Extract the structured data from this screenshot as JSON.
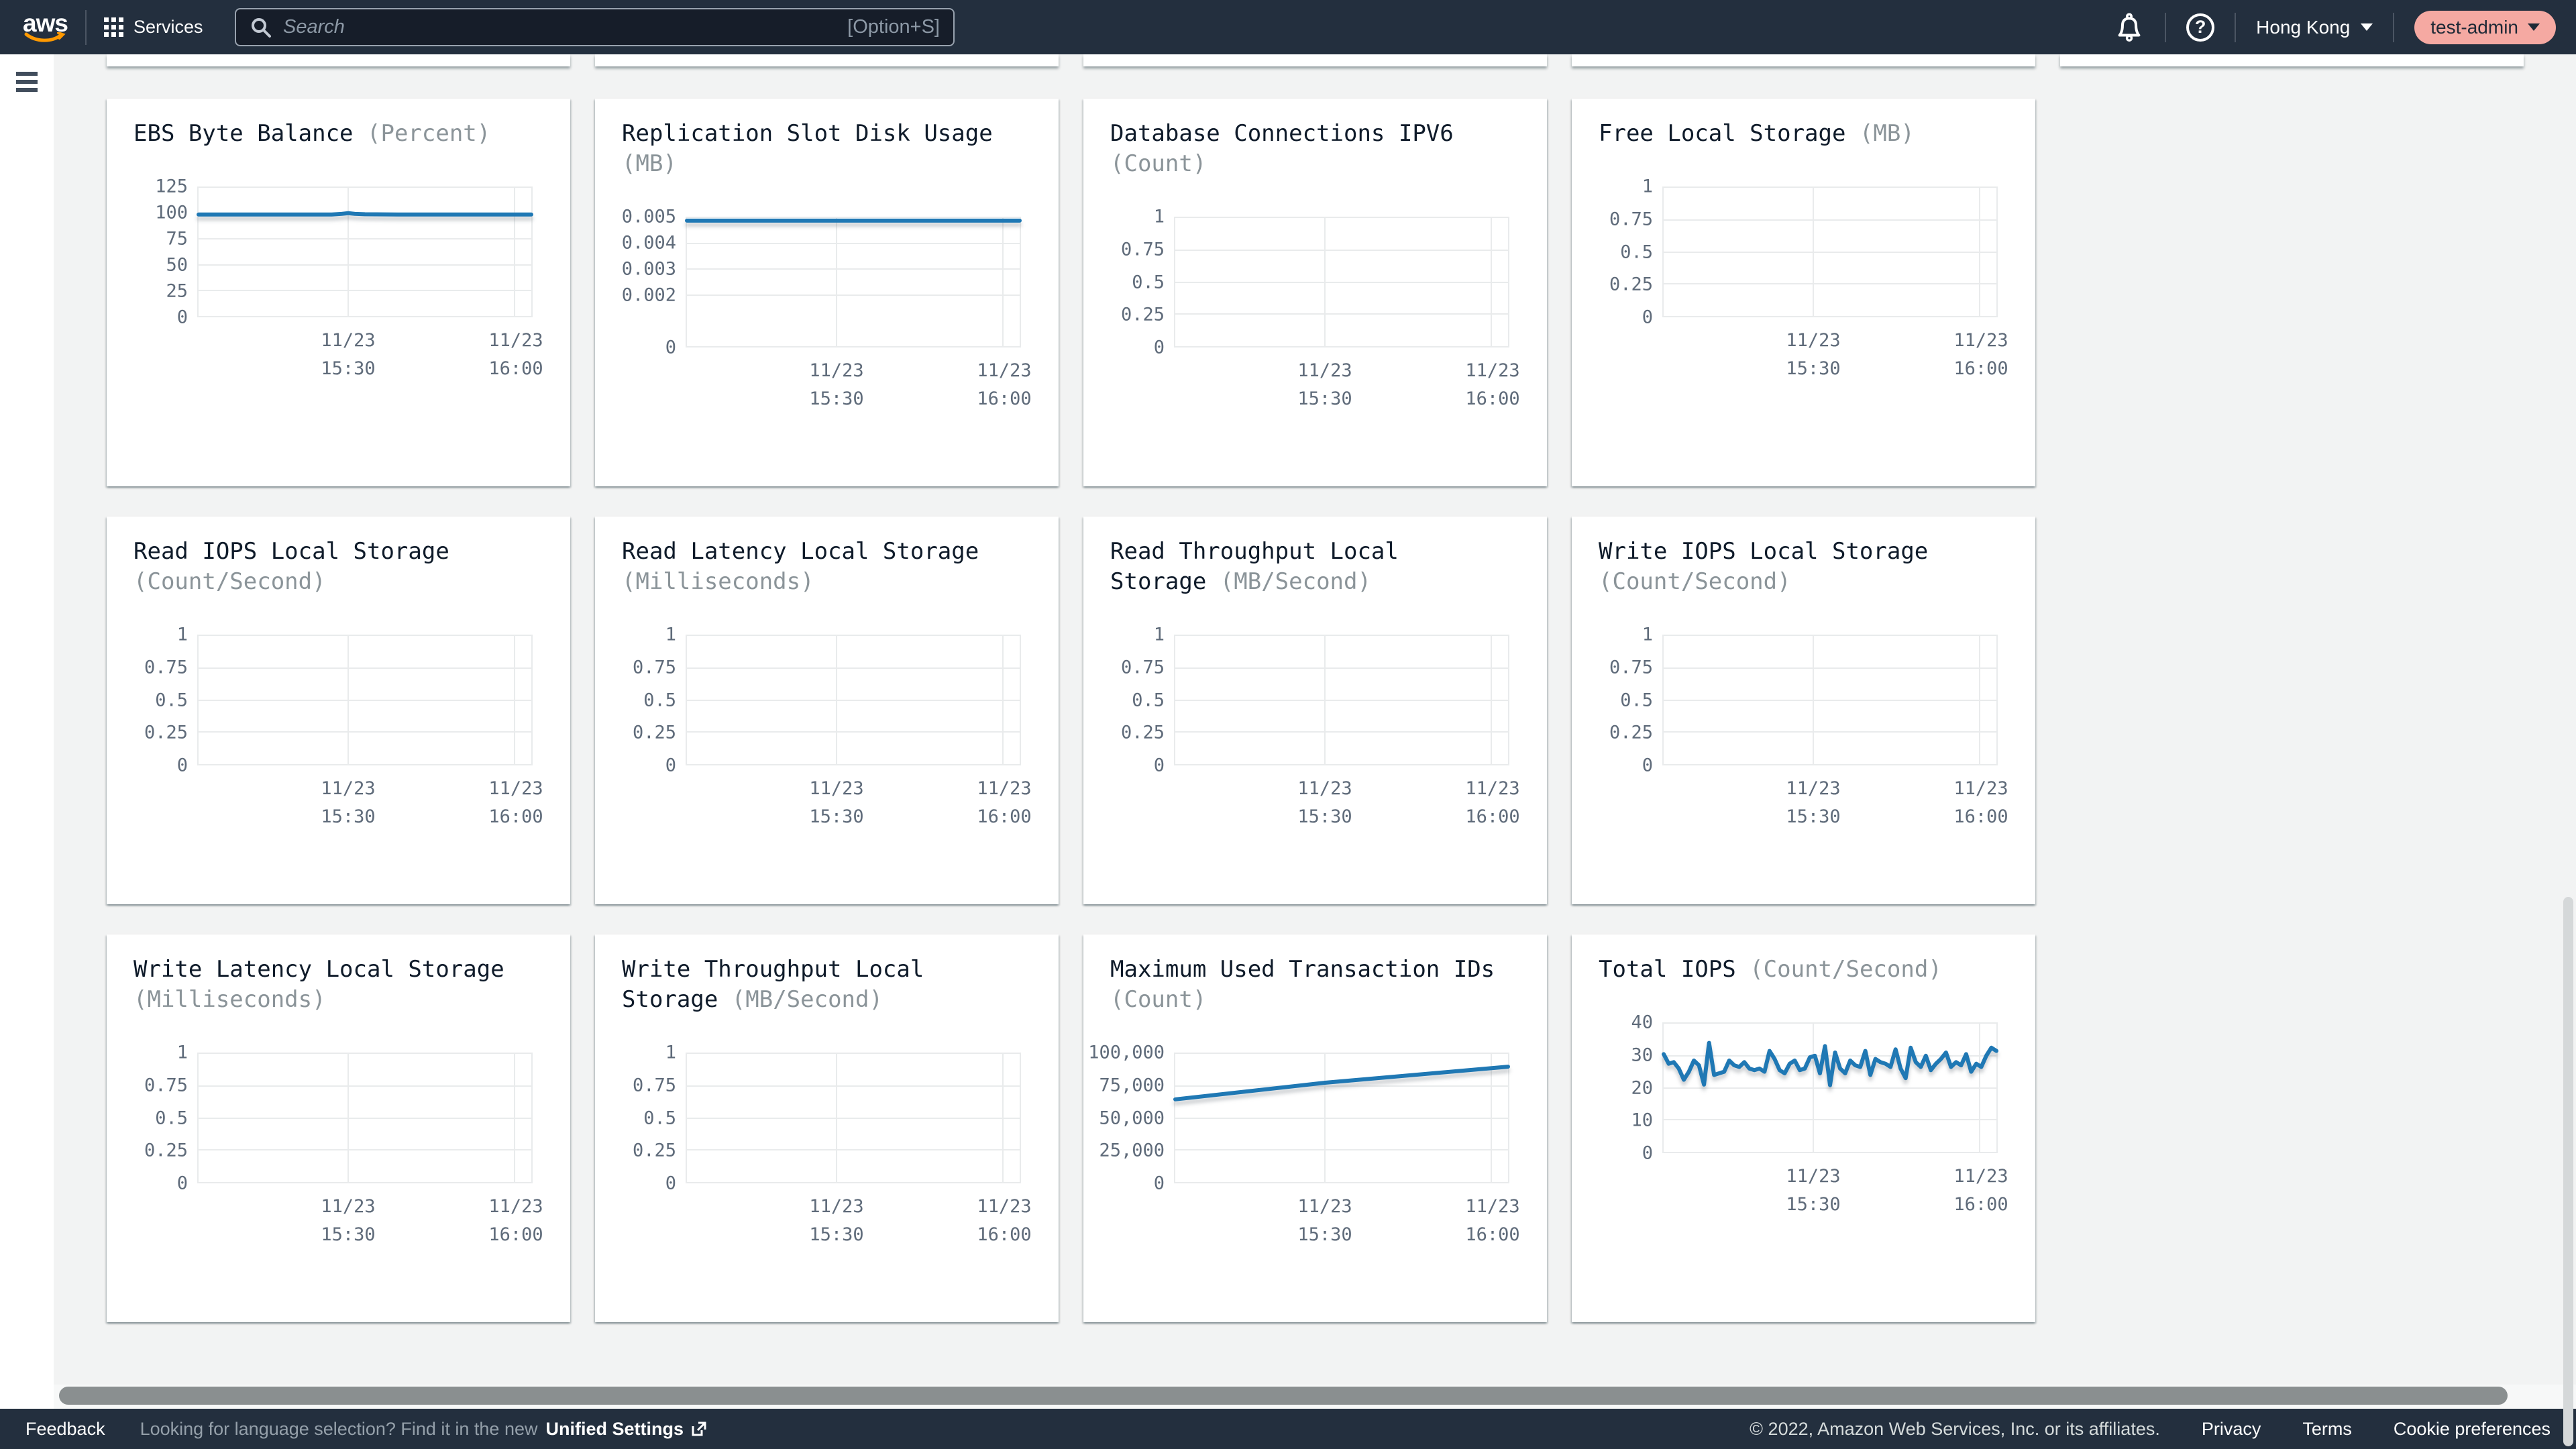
{
  "topbar": {
    "logo_text": "aws",
    "services": "Services",
    "search": {
      "placeholder": "Search",
      "shortcut": "[Option+S]"
    },
    "help_glyph": "?",
    "region": "Hong Kong",
    "account": "test-admin"
  },
  "footer": {
    "feedback": "Feedback",
    "language_hint": "Looking for language selection? Find it in the new",
    "unified_settings": "Unified Settings",
    "copyright": "© 2022, Amazon Web Services, Inc. or its affiliates.",
    "privacy": "Privacy",
    "terms": "Terms",
    "cookie_preferences": "Cookie preferences"
  },
  "colors": {
    "navbar": "#232f3e",
    "content_bg": "#f2f3f3",
    "card_bg": "#ffffff",
    "line_blue": "#1f78b4",
    "account_pill": "#f5a9a2",
    "aws_smile_orange": "#ff9900",
    "tick_gray": "#5f6b7a",
    "unit_gray": "#8b9499"
  },
  "chart_data": [
    {
      "type": "line",
      "title": "EBS Byte Balance",
      "unit": "(Percent)",
      "y_max": 125,
      "y_ticks": [
        {
          "label": "125",
          "pos": 1
        },
        {
          "label": "100",
          "pos": 0.8
        },
        {
          "label": "75",
          "pos": 0.6
        },
        {
          "label": "50",
          "pos": 0.4
        },
        {
          "label": "25",
          "pos": 0.2
        },
        {
          "label": "0",
          "pos": 0
        }
      ],
      "x_ticks": [
        {
          "date": "11/23",
          "time": "15:30",
          "pos": 0.45
        },
        {
          "date": "11/23",
          "time": "16:00",
          "pos": 0.95
        }
      ],
      "series": {
        "points": [
          [
            0,
            99
          ],
          [
            0.1,
            99
          ],
          [
            0.2,
            99
          ],
          [
            0.3,
            99
          ],
          [
            0.4,
            99
          ],
          [
            0.43,
            99.6
          ],
          [
            0.45,
            100.3
          ],
          [
            0.47,
            99.6
          ],
          [
            0.5,
            99.2
          ],
          [
            0.6,
            99
          ],
          [
            0.7,
            99
          ],
          [
            0.8,
            99
          ],
          [
            0.9,
            99
          ],
          [
            1,
            99
          ]
        ]
      }
    },
    {
      "type": "line",
      "title": "Replication Slot Disk Usage",
      "unit": "(MB)",
      "y_max": 0.005,
      "y_ticks": [
        {
          "label": "0.005",
          "pos": 1
        },
        {
          "label": "0.004",
          "pos": 0.8
        },
        {
          "label": "0.003",
          "pos": 0.6
        },
        {
          "label": "0.002",
          "pos": 0.4
        },
        {
          "label": "0",
          "pos": 0
        }
      ],
      "x_ticks": [
        {
          "date": "11/23",
          "time": "15:30",
          "pos": 0.45
        },
        {
          "date": "11/23",
          "time": "16:00",
          "pos": 0.95
        }
      ],
      "series": {
        "points": [
          [
            0,
            0.0049
          ],
          [
            1,
            0.0049
          ]
        ]
      }
    },
    {
      "type": "line",
      "title": "Database Connections IPV6",
      "unit": "(Count)",
      "y_max": 1,
      "y_ticks": [
        {
          "label": "1",
          "pos": 1
        },
        {
          "label": "0.75",
          "pos": 0.75
        },
        {
          "label": "0.5",
          "pos": 0.5
        },
        {
          "label": "0.25",
          "pos": 0.25
        },
        {
          "label": "0",
          "pos": 0
        }
      ],
      "x_ticks": [
        {
          "date": "11/23",
          "time": "15:30",
          "pos": 0.45
        },
        {
          "date": "11/23",
          "time": "16:00",
          "pos": 0.95
        }
      ],
      "series": null
    },
    {
      "type": "line",
      "title": "Free Local Storage",
      "unit": "(MB)",
      "y_max": 1,
      "y_ticks": [
        {
          "label": "1",
          "pos": 1
        },
        {
          "label": "0.75",
          "pos": 0.75
        },
        {
          "label": "0.5",
          "pos": 0.5
        },
        {
          "label": "0.25",
          "pos": 0.25
        },
        {
          "label": "0",
          "pos": 0
        }
      ],
      "x_ticks": [
        {
          "date": "11/23",
          "time": "15:30",
          "pos": 0.45
        },
        {
          "date": "11/23",
          "time": "16:00",
          "pos": 0.95
        }
      ],
      "series": null
    },
    {
      "type": "line",
      "title": "Read IOPS Local Storage",
      "unit": "(Count/Second)",
      "y_max": 1,
      "y_ticks": [
        {
          "label": "1",
          "pos": 1
        },
        {
          "label": "0.75",
          "pos": 0.75
        },
        {
          "label": "0.5",
          "pos": 0.5
        },
        {
          "label": "0.25",
          "pos": 0.25
        },
        {
          "label": "0",
          "pos": 0
        }
      ],
      "x_ticks": [
        {
          "date": "11/23",
          "time": "15:30",
          "pos": 0.45
        },
        {
          "date": "11/23",
          "time": "16:00",
          "pos": 0.95
        }
      ],
      "series": null
    },
    {
      "type": "line",
      "title": "Read Latency Local Storage",
      "unit": "(Milliseconds)",
      "y_max": 1,
      "y_ticks": [
        {
          "label": "1",
          "pos": 1
        },
        {
          "label": "0.75",
          "pos": 0.75
        },
        {
          "label": "0.5",
          "pos": 0.5
        },
        {
          "label": "0.25",
          "pos": 0.25
        },
        {
          "label": "0",
          "pos": 0
        }
      ],
      "x_ticks": [
        {
          "date": "11/23",
          "time": "15:30",
          "pos": 0.45
        },
        {
          "date": "11/23",
          "time": "16:00",
          "pos": 0.95
        }
      ],
      "series": null
    },
    {
      "type": "line",
      "title": "Read Throughput Local Storage",
      "unit": "(MB/Second)",
      "y_max": 1,
      "y_ticks": [
        {
          "label": "1",
          "pos": 1
        },
        {
          "label": "0.75",
          "pos": 0.75
        },
        {
          "label": "0.5",
          "pos": 0.5
        },
        {
          "label": "0.25",
          "pos": 0.25
        },
        {
          "label": "0",
          "pos": 0
        }
      ],
      "x_ticks": [
        {
          "date": "11/23",
          "time": "15:30",
          "pos": 0.45
        },
        {
          "date": "11/23",
          "time": "16:00",
          "pos": 0.95
        }
      ],
      "series": null
    },
    {
      "type": "line",
      "title": "Write IOPS Local Storage",
      "unit": "(Count/Second)",
      "y_max": 1,
      "y_ticks": [
        {
          "label": "1",
          "pos": 1
        },
        {
          "label": "0.75",
          "pos": 0.75
        },
        {
          "label": "0.5",
          "pos": 0.5
        },
        {
          "label": "0.25",
          "pos": 0.25
        },
        {
          "label": "0",
          "pos": 0
        }
      ],
      "x_ticks": [
        {
          "date": "11/23",
          "time": "15:30",
          "pos": 0.45
        },
        {
          "date": "11/23",
          "time": "16:00",
          "pos": 0.95
        }
      ],
      "series": null
    },
    {
      "type": "line",
      "title": "Write Latency Local Storage",
      "unit": "(Milliseconds)",
      "y_max": 1,
      "y_ticks": [
        {
          "label": "1",
          "pos": 1
        },
        {
          "label": "0.75",
          "pos": 0.75
        },
        {
          "label": "0.5",
          "pos": 0.5
        },
        {
          "label": "0.25",
          "pos": 0.25
        },
        {
          "label": "0",
          "pos": 0
        }
      ],
      "x_ticks": [
        {
          "date": "11/23",
          "time": "15:30",
          "pos": 0.45
        },
        {
          "date": "11/23",
          "time": "16:00",
          "pos": 0.95
        }
      ],
      "series": null
    },
    {
      "type": "line",
      "title": "Write Throughput Local Storage",
      "unit": "(MB/Second)",
      "y_max": 1,
      "y_ticks": [
        {
          "label": "1",
          "pos": 1
        },
        {
          "label": "0.75",
          "pos": 0.75
        },
        {
          "label": "0.5",
          "pos": 0.5
        },
        {
          "label": "0.25",
          "pos": 0.25
        },
        {
          "label": "0",
          "pos": 0
        }
      ],
      "x_ticks": [
        {
          "date": "11/23",
          "time": "15:30",
          "pos": 0.45
        },
        {
          "date": "11/23",
          "time": "16:00",
          "pos": 0.95
        }
      ],
      "series": null
    },
    {
      "type": "line",
      "title": "Maximum Used Transaction IDs",
      "unit": "(Count)",
      "y_max": 100000,
      "y_ticks": [
        {
          "label": "100,000",
          "pos": 1
        },
        {
          "label": "75,000",
          "pos": 0.75
        },
        {
          "label": "50,000",
          "pos": 0.5
        },
        {
          "label": "25,000",
          "pos": 0.25
        },
        {
          "label": "0",
          "pos": 0
        }
      ],
      "x_ticks": [
        {
          "date": "11/23",
          "time": "15:30",
          "pos": 0.45
        },
        {
          "date": "11/23",
          "time": "16:00",
          "pos": 0.95
        }
      ],
      "series": {
        "points": [
          [
            0,
            64500
          ],
          [
            0.45,
            77500
          ],
          [
            1,
            90000
          ]
        ]
      }
    },
    {
      "type": "line",
      "title": "Total IOPS",
      "unit": "(Count/Second)",
      "y_max": 40,
      "y_ticks": [
        {
          "label": "40",
          "pos": 1
        },
        {
          "label": "30",
          "pos": 0.75
        },
        {
          "label": "20",
          "pos": 0.5
        },
        {
          "label": "10",
          "pos": 0.25
        },
        {
          "label": "0",
          "pos": 0
        }
      ],
      "x_ticks": [
        {
          "date": "11/23",
          "time": "15:30",
          "pos": 0.45
        },
        {
          "date": "11/23",
          "time": "16:00",
          "pos": 0.95
        }
      ],
      "series": {
        "values": [
          30.5,
          27.5,
          28,
          26,
          22.5,
          25,
          28.5,
          27,
          21,
          34,
          24,
          24.5,
          25,
          28.5,
          27,
          26.5,
          28,
          26,
          25.5,
          26,
          25,
          31.5,
          29,
          25.5,
          24.5,
          27.5,
          28.5,
          25.5,
          26,
          29.5,
          30,
          24.5,
          33,
          20.8,
          31,
          26,
          24.5,
          28.5,
          27,
          26.5,
          31.5,
          24,
          29,
          28,
          27.5,
          26.5,
          32,
          26,
          23,
          32.5,
          28,
          26.5,
          30,
          25.5,
          27.5,
          29,
          31,
          26.5,
          28,
          27,
          30.5,
          25,
          27.5,
          26.5,
          30,
          32.5,
          31.5
        ]
      }
    }
  ]
}
